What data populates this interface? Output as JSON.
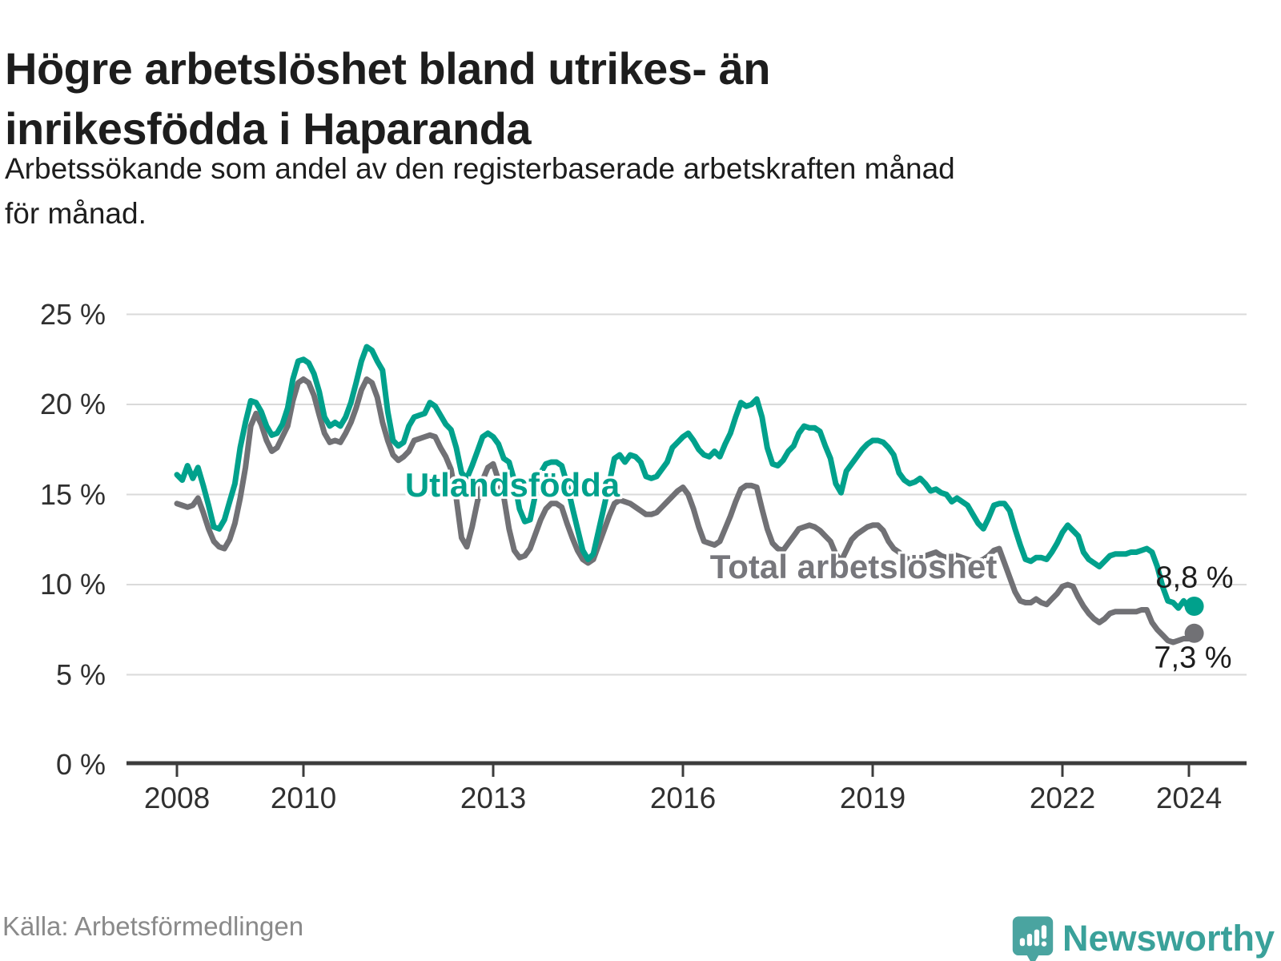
{
  "title_lines": [
    "Högre arbetslöshet bland utrikes- än",
    "inrikesfödda i Haparanda"
  ],
  "subtitle_lines": [
    "Arbetssökande som andel av den registerbaserade arbetskraften månad",
    "för månad."
  ],
  "source": "Källa: Arbetsförmedlingen",
  "brand": "Newsworthy",
  "colors": {
    "teal_series": "#00a18c",
    "gray_series": "#717175",
    "axis": "#3c3c3c",
    "grid": "#dadada",
    "text_dark": "#1d1d1d",
    "brand_teal": "#3aa19a",
    "brand_pin": "#4aa4a0"
  },
  "chart_data": {
    "type": "line",
    "frequency": "monthly",
    "x_start": "2008-01",
    "x_end": "2024-02",
    "ylim": [
      0,
      25
    ],
    "grid": true,
    "y_ticks": [
      {
        "value": 25,
        "label": "25 %"
      },
      {
        "value": 20,
        "label": "20 %"
      },
      {
        "value": 15,
        "label": "15 %"
      },
      {
        "value": 10,
        "label": "10 %"
      },
      {
        "value": 5,
        "label": "5 %"
      },
      {
        "value": 0,
        "label": "0 %"
      }
    ],
    "x_ticks": [
      {
        "year": 2008,
        "label": "2008"
      },
      {
        "year": 2010,
        "label": "2010"
      },
      {
        "year": 2013,
        "label": "2013"
      },
      {
        "year": 2016,
        "label": "2016"
      },
      {
        "year": 2019,
        "label": "2019"
      },
      {
        "year": 2022,
        "label": "2022"
      },
      {
        "year": 2024,
        "label": "2024"
      }
    ],
    "series": [
      {
        "name": "Utlandsfödda",
        "color": "#00a18c",
        "end_label": "8,8 %",
        "end_value": 8.8,
        "values": [
          16.1,
          15.8,
          16.6,
          15.9,
          16.5,
          15.5,
          14.4,
          13.2,
          13.1,
          13.6,
          14.6,
          15.6,
          17.6,
          19.0,
          20.2,
          20.1,
          19.6,
          18.8,
          18.3,
          18.4,
          18.9,
          19.8,
          21.4,
          22.4,
          22.5,
          22.3,
          21.7,
          20.7,
          19.3,
          18.8,
          19.0,
          18.8,
          19.3,
          20.1,
          21.2,
          22.4,
          23.2,
          23.0,
          22.4,
          21.9,
          19.6,
          18.0,
          17.7,
          17.9,
          18.8,
          19.3,
          19.4,
          19.5,
          20.1,
          19.9,
          19.4,
          18.9,
          18.6,
          17.6,
          16.2,
          15.9,
          16.6,
          17.4,
          18.2,
          18.4,
          18.2,
          17.8,
          17.0,
          16.8,
          15.8,
          14.2,
          13.5,
          13.6,
          15.0,
          16.2,
          16.7,
          16.8,
          16.8,
          16.6,
          15.6,
          14.3,
          13.1,
          11.9,
          11.4,
          11.7,
          13.0,
          14.3,
          15.6,
          17.0,
          17.2,
          16.8,
          17.2,
          17.1,
          16.8,
          16.0,
          15.9,
          16.0,
          16.4,
          16.8,
          17.6,
          17.9,
          18.2,
          18.4,
          18.0,
          17.5,
          17.2,
          17.1,
          17.4,
          17.1,
          17.8,
          18.4,
          19.3,
          20.1,
          19.9,
          20.0,
          20.3,
          19.3,
          17.6,
          16.7,
          16.6,
          16.9,
          17.4,
          17.7,
          18.4,
          18.8,
          18.7,
          18.7,
          18.5,
          17.7,
          17.0,
          15.6,
          15.1,
          16.3,
          16.7,
          17.1,
          17.5,
          17.8,
          18.0,
          18.0,
          17.9,
          17.6,
          17.2,
          16.2,
          15.8,
          15.6,
          15.7,
          15.9,
          15.6,
          15.2,
          15.3,
          15.1,
          15.0,
          14.6,
          14.8,
          14.6,
          14.4,
          13.9,
          13.4,
          13.1,
          13.7,
          14.4,
          14.5,
          14.5,
          14.1,
          13.1,
          12.2,
          11.4,
          11.3,
          11.5,
          11.5,
          11.4,
          11.8,
          12.3,
          12.9,
          13.3,
          13.0,
          12.7,
          11.8,
          11.4,
          11.2,
          11.0,
          11.3,
          11.6,
          11.7,
          11.7,
          11.7,
          11.8,
          11.8,
          11.9,
          12.0,
          11.8,
          11.0,
          9.9,
          9.1,
          9.0,
          8.7,
          9.1,
          8.7,
          8.8
        ]
      },
      {
        "name": "Total arbetslöshet",
        "color": "#717175",
        "end_label": "7,3 %",
        "end_value": 7.3,
        "values": [
          14.5,
          14.4,
          14.3,
          14.4,
          14.8,
          14.0,
          13.1,
          12.4,
          12.1,
          12.0,
          12.5,
          13.4,
          14.8,
          16.5,
          18.8,
          19.5,
          18.9,
          18.0,
          17.4,
          17.6,
          18.2,
          18.8,
          20.2,
          21.2,
          21.4,
          21.2,
          20.5,
          19.4,
          18.4,
          17.9,
          18.0,
          17.9,
          18.4,
          19.0,
          19.8,
          20.8,
          21.4,
          21.2,
          20.4,
          19.0,
          18.0,
          17.2,
          16.9,
          17.1,
          17.4,
          18.0,
          18.1,
          18.2,
          18.3,
          18.2,
          17.6,
          17.1,
          16.4,
          14.8,
          12.6,
          12.1,
          13.2,
          14.6,
          15.8,
          16.5,
          16.7,
          15.8,
          14.9,
          13.1,
          11.9,
          11.5,
          11.6,
          12.0,
          12.8,
          13.6,
          14.2,
          14.5,
          14.5,
          14.3,
          13.4,
          12.6,
          11.9,
          11.4,
          11.2,
          11.4,
          12.2,
          13.0,
          13.8,
          14.5,
          14.7,
          14.6,
          14.5,
          14.3,
          14.1,
          13.9,
          13.9,
          14.0,
          14.3,
          14.6,
          14.9,
          15.2,
          15.4,
          15.0,
          14.2,
          13.2,
          12.4,
          12.3,
          12.2,
          12.4,
          13.1,
          13.8,
          14.6,
          15.3,
          15.5,
          15.5,
          15.4,
          14.2,
          13.1,
          12.3,
          12.0,
          11.9,
          12.3,
          12.7,
          13.1,
          13.2,
          13.3,
          13.2,
          13.0,
          12.7,
          12.4,
          11.7,
          11.3,
          11.9,
          12.5,
          12.8,
          13.0,
          13.2,
          13.3,
          13.3,
          13.0,
          12.4,
          12.0,
          11.8,
          11.5,
          11.4,
          11.4,
          11.5,
          11.6,
          11.7,
          11.8,
          11.6,
          11.5,
          11.7,
          11.6,
          11.5,
          11.4,
          11.3,
          11.3,
          11.4,
          11.6,
          11.9,
          12.0,
          11.2,
          10.4,
          9.6,
          9.1,
          9.0,
          9.0,
          9.2,
          9.0,
          8.9,
          9.2,
          9.5,
          9.9,
          10.0,
          9.9,
          9.3,
          8.8,
          8.4,
          8.1,
          7.9,
          8.1,
          8.4,
          8.5,
          8.5,
          8.5,
          8.5,
          8.5,
          8.6,
          8.6,
          7.9,
          7.5,
          7.2,
          6.9,
          6.8,
          6.9,
          7.0,
          7.0,
          7.3
        ]
      }
    ]
  }
}
